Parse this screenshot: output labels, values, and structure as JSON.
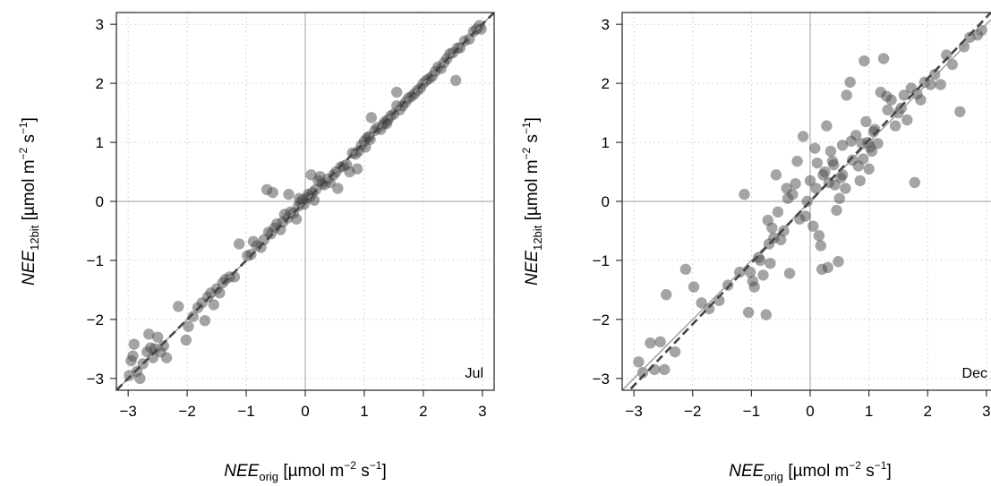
{
  "figure": {
    "colors": {
      "points": "#4a4a4a",
      "grid": "#d8d8d8",
      "zero_lines": "#b0b0b0",
      "identity_line": "#9a9a9a",
      "fit_line": "#444444",
      "frame": "#333333"
    }
  },
  "chart_data": [
    {
      "type": "scatter",
      "panel_label": "Jul",
      "xlabel": {
        "main": "NEE",
        "sub": "orig",
        "unit": "[µmol m",
        "exp1": "−2",
        "unit_mid": " s",
        "exp2": "−1",
        "unit_end": "]"
      },
      "ylabel": {
        "main": "NEE",
        "sub": "12bit",
        "unit": "[µmol m",
        "exp1": "−2",
        "unit_mid": " s",
        "exp2": "−1",
        "unit_end": "]"
      },
      "xlim": [
        -3.2,
        3.2
      ],
      "ylim": [
        -3.2,
        3.2
      ],
      "x_ticks": [
        -3,
        -2,
        -1,
        0,
        1,
        2,
        3
      ],
      "y_ticks": [
        -3,
        -2,
        -1,
        0,
        1,
        2,
        3
      ],
      "x_tick_labels": [
        "−3",
        "−2",
        "−1",
        "0",
        "1",
        "2",
        "3"
      ],
      "y_tick_labels": [
        "−3",
        "−2",
        "−1",
        "0",
        "1",
        "2",
        "3"
      ],
      "grid": true,
      "lines": [
        {
          "kind": "identity",
          "style": "solid",
          "slope": 1,
          "intercept": 0
        },
        {
          "kind": "fit",
          "style": "dashed",
          "slope": 1,
          "intercept": 0
        }
      ],
      "points": [
        [
          -2.98,
          -2.95
        ],
        [
          -2.95,
          -2.7
        ],
        [
          -2.92,
          -2.62
        ],
        [
          -2.9,
          -2.42
        ],
        [
          -2.85,
          -2.88
        ],
        [
          -2.8,
          -3.0
        ],
        [
          -2.75,
          -2.75
        ],
        [
          -2.68,
          -2.55
        ],
        [
          -2.65,
          -2.25
        ],
        [
          -2.62,
          -2.48
        ],
        [
          -2.58,
          -2.65
        ],
        [
          -2.55,
          -2.5
        ],
        [
          -2.5,
          -2.3
        ],
        [
          -2.45,
          -2.55
        ],
        [
          -2.4,
          -2.45
        ],
        [
          -2.35,
          -2.65
        ],
        [
          -2.15,
          -1.78
        ],
        [
          -2.02,
          -2.35
        ],
        [
          -1.98,
          -2.12
        ],
        [
          -1.9,
          -1.95
        ],
        [
          -1.82,
          -1.8
        ],
        [
          -1.75,
          -1.72
        ],
        [
          -1.7,
          -2.02
        ],
        [
          -1.65,
          -1.62
        ],
        [
          -1.6,
          -1.55
        ],
        [
          -1.55,
          -1.75
        ],
        [
          -1.5,
          -1.48
        ],
        [
          -1.45,
          -1.55
        ],
        [
          -1.4,
          -1.38
        ],
        [
          -1.35,
          -1.32
        ],
        [
          -1.28,
          -1.28
        ],
        [
          -1.2,
          -1.28
        ],
        [
          -1.12,
          -0.72
        ],
        [
          -0.98,
          -0.92
        ],
        [
          -0.92,
          -0.9
        ],
        [
          -0.88,
          -0.68
        ],
        [
          -0.82,
          -0.75
        ],
        [
          -0.75,
          -0.78
        ],
        [
          -0.7,
          -0.65
        ],
        [
          -0.65,
          0.2
        ],
        [
          -0.62,
          -0.52
        ],
        [
          -0.58,
          -0.55
        ],
        [
          -0.55,
          0.15
        ],
        [
          -0.52,
          -0.45
        ],
        [
          -0.48,
          -0.38
        ],
        [
          -0.42,
          -0.48
        ],
        [
          -0.38,
          -0.35
        ],
        [
          -0.35,
          -0.22
        ],
        [
          -0.3,
          -0.28
        ],
        [
          -0.25,
          -0.18
        ],
        [
          -0.2,
          -0.2
        ],
        [
          -0.15,
          -0.3
        ],
        [
          -0.12,
          -0.08
        ],
        [
          -0.08,
          -0.02
        ],
        [
          -0.05,
          0.02
        ],
        [
          -0.02,
          -0.05
        ],
        [
          0.02,
          0.05
        ],
        [
          0.05,
          0.12
        ],
        [
          0.08,
          0.08
        ],
        [
          0.12,
          0.15
        ],
        [
          0.18,
          0.2
        ],
        [
          0.22,
          0.35
        ],
        [
          0.25,
          0.42
        ],
        [
          0.28,
          0.3
        ],
        [
          -0.28,
          0.12
        ],
        [
          0.32,
          0.28
        ],
        [
          0.38,
          0.38
        ],
        [
          0.42,
          0.32
        ],
        [
          0.48,
          0.45
        ],
        [
          0.52,
          0.5
        ],
        [
          0.55,
          0.22
        ],
        [
          0.6,
          0.58
        ],
        [
          0.65,
          0.6
        ],
        [
          0.7,
          0.62
        ],
        [
          0.75,
          0.5
        ],
        [
          0.8,
          0.82
        ],
        [
          0.85,
          0.8
        ],
        [
          0.88,
          0.55
        ],
        [
          0.9,
          0.85
        ],
        [
          0.95,
          0.95
        ],
        [
          1.0,
          1.02
        ],
        [
          1.02,
          0.92
        ],
        [
          1.05,
          1.08
        ],
        [
          1.08,
          1.1
        ],
        [
          1.1,
          1.05
        ],
        [
          1.12,
          1.42
        ],
        [
          1.18,
          1.2
        ],
        [
          1.22,
          1.25
        ],
        [
          1.28,
          1.22
        ],
        [
          1.32,
          1.3
        ],
        [
          1.35,
          1.35
        ],
        [
          1.4,
          1.38
        ],
        [
          1.45,
          1.45
        ],
        [
          1.5,
          1.48
        ],
        [
          1.55,
          1.62
        ],
        [
          1.6,
          1.55
        ],
        [
          1.65,
          1.62
        ],
        [
          1.7,
          1.68
        ],
        [
          1.75,
          1.75
        ],
        [
          1.8,
          1.78
        ],
        [
          1.85,
          1.82
        ],
        [
          1.9,
          1.88
        ],
        [
          1.95,
          1.92
        ],
        [
          1.55,
          1.85
        ],
        [
          2.0,
          2.0
        ],
        [
          2.05,
          2.05
        ],
        [
          2.1,
          2.08
        ],
        [
          2.15,
          2.12
        ],
        [
          2.2,
          2.2
        ],
        [
          2.25,
          2.28
        ],
        [
          2.3,
          2.25
        ],
        [
          2.35,
          2.35
        ],
        [
          2.4,
          2.42
        ],
        [
          2.45,
          2.5
        ],
        [
          2.5,
          2.52
        ],
        [
          2.55,
          2.05
        ],
        [
          2.58,
          2.6
        ],
        [
          2.62,
          2.6
        ],
        [
          2.7,
          2.72
        ],
        [
          2.78,
          2.75
        ],
        [
          2.85,
          2.88
        ],
        [
          2.9,
          2.92
        ],
        [
          2.95,
          2.98
        ],
        [
          2.98,
          2.92
        ],
        [
          0.1,
          0.45
        ],
        [
          0.15,
          0.02
        ],
        [
          -0.1,
          0.05
        ],
        [
          1.38,
          1.32
        ]
      ]
    },
    {
      "type": "scatter",
      "panel_label": "Dec",
      "xlabel": {
        "main": "NEE",
        "sub": "orig",
        "unit": "[µmol m",
        "exp1": "−2",
        "unit_mid": " s",
        "exp2": "−1",
        "unit_end": "]"
      },
      "ylabel": {
        "main": "NEE",
        "sub": "12bit",
        "unit": "[µmol m",
        "exp1": "−2",
        "unit_mid": " s",
        "exp2": "−1",
        "unit_end": "]"
      },
      "xlim": [
        -3.2,
        3.2
      ],
      "ylim": [
        -3.2,
        3.2
      ],
      "x_ticks": [
        -3,
        -2,
        -1,
        0,
        1,
        2,
        3
      ],
      "y_ticks": [
        -3,
        -2,
        -1,
        0,
        1,
        2,
        3
      ],
      "x_tick_labels": [
        "−3",
        "−2",
        "−1",
        "0",
        "1",
        "2",
        "3"
      ],
      "y_tick_labels": [
        "−3",
        "−2",
        "−1",
        "0",
        "1",
        "2",
        "3"
      ],
      "grid": true,
      "lines": [
        {
          "kind": "identity",
          "style": "solid",
          "slope": 1,
          "intercept": 0
        },
        {
          "kind": "fit",
          "style": "dashed",
          "slope": 1.04,
          "intercept": 0.0
        }
      ],
      "points": [
        [
          -2.92,
          -2.72
        ],
        [
          -2.85,
          -2.9
        ],
        [
          -2.72,
          -2.4
        ],
        [
          -2.65,
          -2.85
        ],
        [
          -2.55,
          -2.38
        ],
        [
          -2.48,
          -2.85
        ],
        [
          -2.45,
          -1.58
        ],
        [
          -2.3,
          -2.55
        ],
        [
          -2.12,
          -1.15
        ],
        [
          -1.98,
          -1.45
        ],
        [
          -1.85,
          -1.72
        ],
        [
          -1.72,
          -1.82
        ],
        [
          -1.55,
          -1.68
        ],
        [
          -1.4,
          -1.42
        ],
        [
          -1.2,
          -1.2
        ],
        [
          -1.12,
          0.12
        ],
        [
          -1.05,
          -1.88
        ],
        [
          -1.02,
          -1.2
        ],
        [
          -0.98,
          -1.35
        ],
        [
          -0.95,
          -1.45
        ],
        [
          -0.88,
          -0.95
        ],
        [
          -0.85,
          -1.0
        ],
        [
          -0.8,
          -1.25
        ],
        [
          -0.75,
          -1.92
        ],
        [
          -0.72,
          -0.32
        ],
        [
          -0.7,
          -0.72
        ],
        [
          -0.68,
          -1.05
        ],
        [
          -0.65,
          -0.45
        ],
        [
          -0.62,
          -0.62
        ],
        [
          -0.58,
          0.45
        ],
        [
          -0.55,
          -0.18
        ],
        [
          -0.5,
          -0.65
        ],
        [
          -0.45,
          -0.5
        ],
        [
          -0.4,
          0.22
        ],
        [
          -0.38,
          0.05
        ],
        [
          -0.35,
          -1.22
        ],
        [
          -0.3,
          0.12
        ],
        [
          -0.22,
          0.68
        ],
        [
          -0.18,
          -0.3
        ],
        [
          -0.12,
          1.1
        ],
        [
          -0.08,
          -0.25
        ],
        [
          -0.05,
          0.0
        ],
        [
          0.05,
          -0.42
        ],
        [
          0.08,
          0.9
        ],
        [
          0.1,
          0.22
        ],
        [
          0.12,
          0.65
        ],
        [
          0.15,
          -0.58
        ],
        [
          0.18,
          -0.75
        ],
        [
          0.2,
          -1.15
        ],
        [
          0.22,
          0.45
        ],
        [
          0.25,
          0.5
        ],
        [
          0.28,
          1.28
        ],
        [
          0.3,
          -1.12
        ],
        [
          0.32,
          0.32
        ],
        [
          0.35,
          0.85
        ],
        [
          0.38,
          0.68
        ],
        [
          0.42,
          0.28
        ],
        [
          0.45,
          -0.15
        ],
        [
          0.48,
          -1.02
        ],
        [
          0.5,
          0.05
        ],
        [
          0.52,
          0.4
        ],
        [
          0.55,
          0.45
        ],
        [
          0.6,
          0.22
        ],
        [
          0.62,
          1.8
        ],
        [
          0.68,
          2.02
        ],
        [
          0.72,
          0.7
        ],
        [
          0.78,
          1.12
        ],
        [
          0.82,
          0.6
        ],
        [
          0.85,
          0.35
        ],
        [
          0.88,
          0.98
        ],
        [
          0.9,
          0.72
        ],
        [
          0.92,
          2.38
        ],
        [
          0.95,
          1.35
        ],
        [
          0.98,
          1.0
        ],
        [
          1.0,
          0.55
        ],
        [
          1.02,
          0.92
        ],
        [
          1.05,
          0.85
        ],
        [
          1.08,
          1.18
        ],
        [
          1.1,
          1.22
        ],
        [
          1.2,
          1.85
        ],
        [
          1.25,
          2.42
        ],
        [
          1.3,
          1.78
        ],
        [
          1.32,
          1.55
        ],
        [
          1.38,
          1.72
        ],
        [
          1.45,
          1.28
        ],
        [
          1.5,
          1.5
        ],
        [
          1.55,
          1.58
        ],
        [
          1.6,
          1.8
        ],
        [
          1.65,
          1.38
        ],
        [
          1.72,
          1.92
        ],
        [
          1.78,
          0.32
        ],
        [
          1.82,
          1.82
        ],
        [
          1.88,
          1.72
        ],
        [
          1.95,
          2.02
        ],
        [
          2.05,
          1.98
        ],
        [
          2.12,
          2.15
        ],
        [
          2.22,
          1.98
        ],
        [
          2.32,
          2.48
        ],
        [
          2.42,
          2.32
        ],
        [
          2.55,
          1.52
        ],
        [
          2.62,
          2.62
        ],
        [
          2.72,
          2.78
        ],
        [
          2.85,
          2.82
        ],
        [
          2.92,
          2.9
        ],
        [
          0.55,
          0.95
        ],
        [
          0.4,
          0.62
        ],
        [
          -0.25,
          0.3
        ],
        [
          1.15,
          0.98
        ],
        [
          0.7,
          1.02
        ],
        [
          0.0,
          0.35
        ]
      ]
    }
  ]
}
